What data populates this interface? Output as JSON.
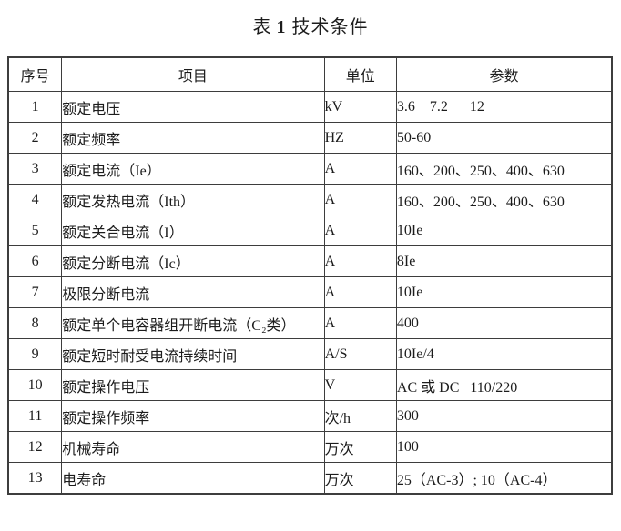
{
  "title": {
    "prefix": "表",
    "number": "1",
    "suffix": "技术条件"
  },
  "table": {
    "headers": {
      "no": "序号",
      "item": "项目",
      "unit": "单位",
      "param": "参数"
    },
    "rows": [
      {
        "no": "1",
        "item": "额定电压",
        "unit": "kV",
        "param": "3.6    7.2      12"
      },
      {
        "no": "2",
        "item": "额定频率",
        "unit": "HZ",
        "param": "50-60"
      },
      {
        "no": "3",
        "item": "额定电流（Ie）",
        "unit": "A",
        "param": "160、200、250、400、630"
      },
      {
        "no": "4",
        "item": "额定发热电流（Ith）",
        "unit": "A",
        "param": "160、200、250、400、630"
      },
      {
        "no": "5",
        "item": "额定关合电流（I）",
        "unit": "A",
        "param": "10Ie"
      },
      {
        "no": "6",
        "item": "额定分断电流（Ic）",
        "unit": "A",
        "param": "8Ie"
      },
      {
        "no": "7",
        "item": "极限分断电流",
        "unit": "A",
        "param": "10Ie"
      },
      {
        "no": "8",
        "item": "额定单个电容器组开断电流（C₂类）",
        "unit": "A",
        "param": "400"
      },
      {
        "no": "9",
        "item": "额定短时耐受电流持续时间",
        "unit": "A/S",
        "param": "10Ie/4"
      },
      {
        "no": "10",
        "item": "额定操作电压",
        "unit": "V",
        "param": "AC 或 DC   110/220"
      },
      {
        "no": "11",
        "item": "额定操作频率",
        "unit": "次/h",
        "param": "300"
      },
      {
        "no": "12",
        "item": "机械寿命",
        "unit": "万次",
        "param": "100"
      },
      {
        "no": "13",
        "item": "电寿命",
        "unit": "万次",
        "param": "25（AC-3）; 10（AC-4）"
      }
    ]
  },
  "colors": {
    "border": "#3d3d3d",
    "text": "#1c1c1c",
    "background": "#ffffff"
  }
}
